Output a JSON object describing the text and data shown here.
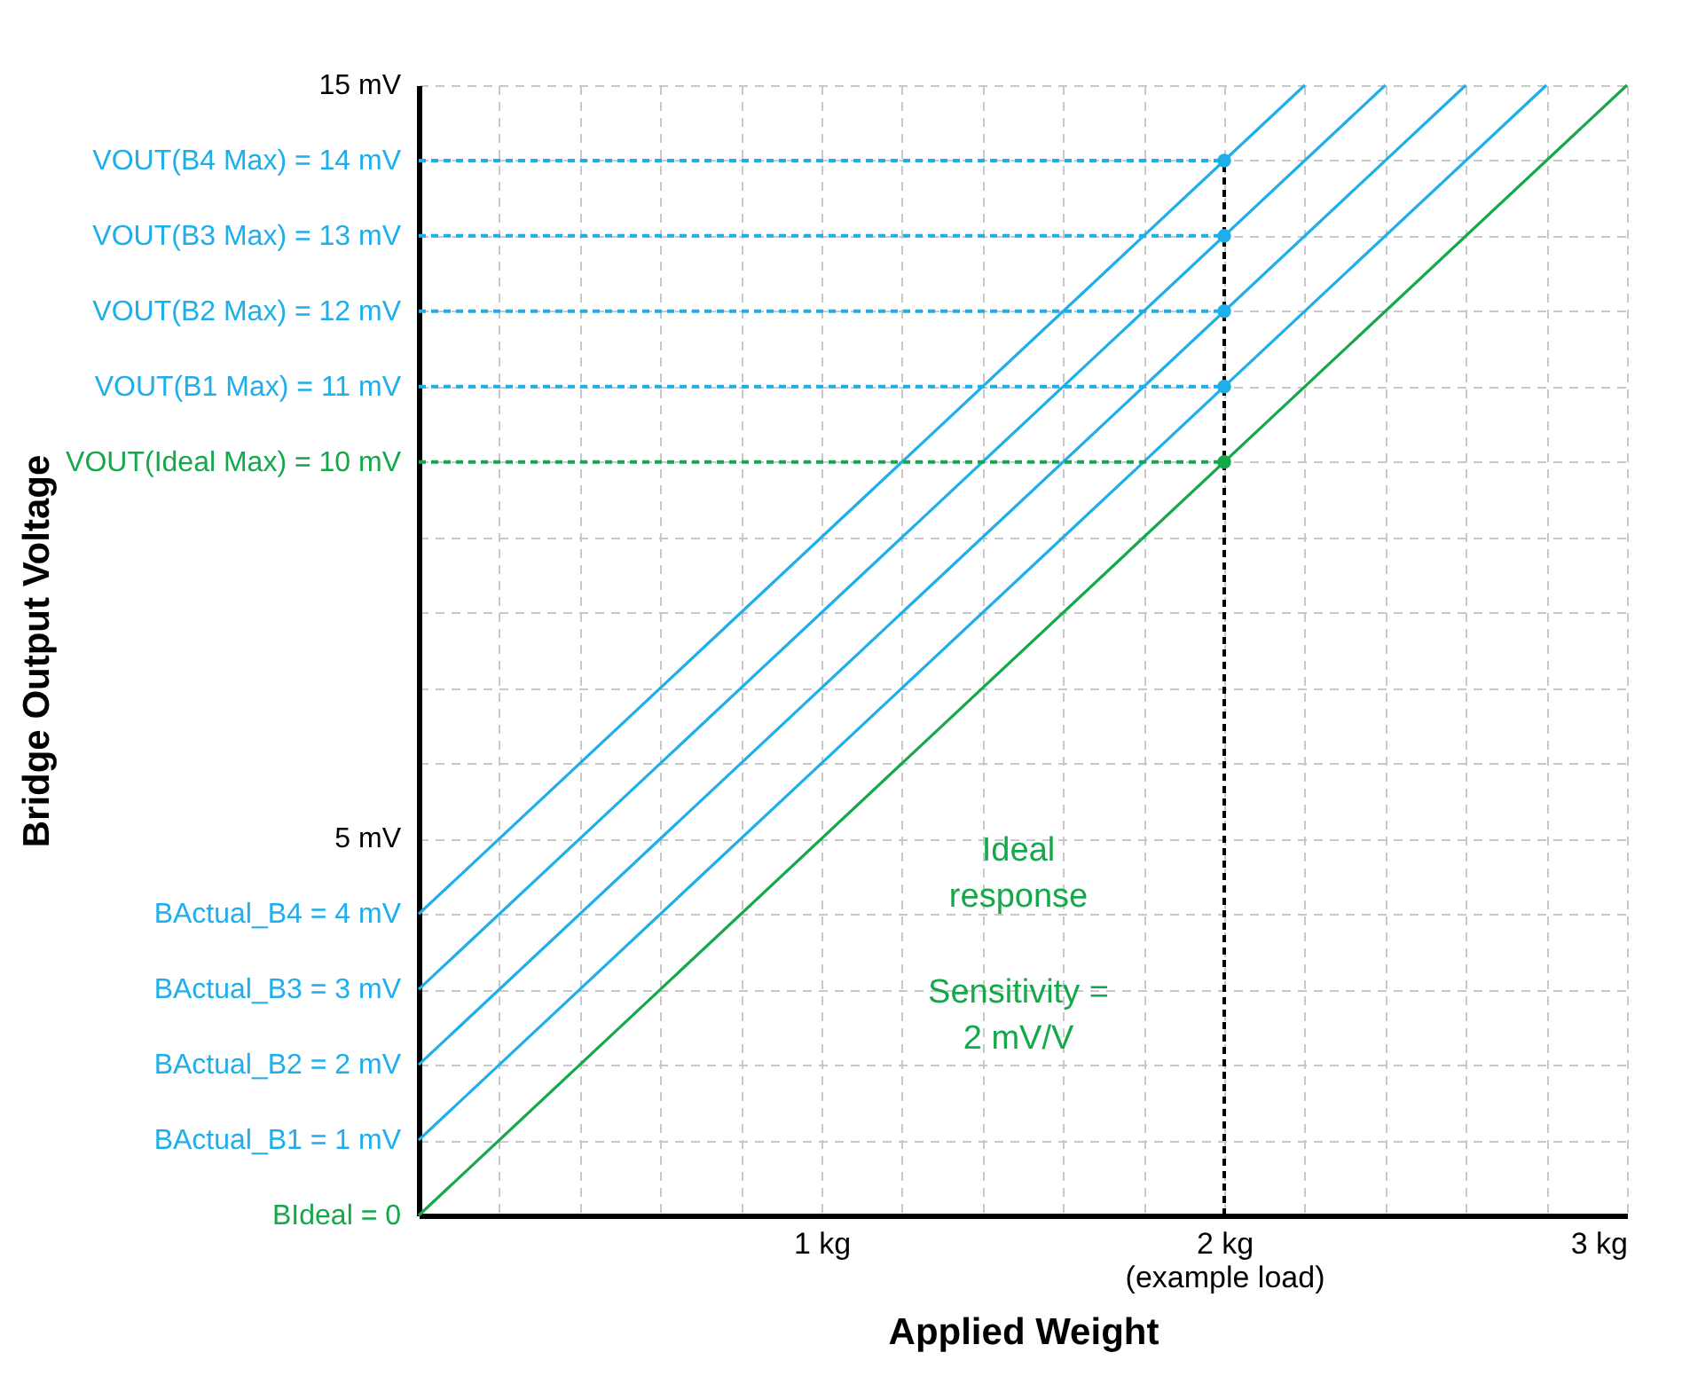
{
  "chart_data": {
    "type": "line",
    "xlabel": "Applied Weight",
    "ylabel": "Bridge Output Voltage",
    "xlim": [
      0,
      3
    ],
    "ylim": [
      0,
      15
    ],
    "grid": true,
    "xticks": [
      {
        "value": 0,
        "label": null
      },
      {
        "value": 0.2,
        "label": null
      },
      {
        "value": 0.4,
        "label": null
      },
      {
        "value": 0.6,
        "label": null
      },
      {
        "value": 0.8,
        "label": null
      },
      {
        "value": 1,
        "label": "1 kg"
      },
      {
        "value": 1.2,
        "label": null
      },
      {
        "value": 1.4,
        "label": null
      },
      {
        "value": 1.6,
        "label": null
      },
      {
        "value": 1.8,
        "label": null
      },
      {
        "value": 2,
        "label": "2 kg\n(example load)"
      },
      {
        "value": 2.2,
        "label": null
      },
      {
        "value": 2.4,
        "label": null
      },
      {
        "value": 2.6,
        "label": null
      },
      {
        "value": 2.8,
        "label": null
      },
      {
        "value": 3,
        "label": "3 kg"
      }
    ],
    "yticks": [
      {
        "value": 0,
        "label": "BIdeal = 0"
      },
      {
        "value": 1,
        "label": "BActual_B1 = 1 mV"
      },
      {
        "value": 2,
        "label": "BActual_B2 = 2 mV"
      },
      {
        "value": 3,
        "label": "BActual_B3 = 3 mV"
      },
      {
        "value": 4,
        "label": "BActual_B4 = 4 mV"
      },
      {
        "value": 5,
        "label": "5 mV"
      },
      {
        "value": 6,
        "label": null
      },
      {
        "value": 7,
        "label": null
      },
      {
        "value": 8,
        "label": null
      },
      {
        "value": 9,
        "label": null
      },
      {
        "value": 10,
        "label": "VOUT(Ideal Max) = 10 mV"
      },
      {
        "value": 11,
        "label": "VOUT(B1 Max) = 11 mV"
      },
      {
        "value": 12,
        "label": "VOUT(B2 Max) = 12 mV"
      },
      {
        "value": 13,
        "label": "VOUT(B3 Max) = 13 mV"
      },
      {
        "value": 14,
        "label": "VOUT(B4 Max) = 14 mV"
      },
      {
        "value": 15,
        "label": "15 mV"
      }
    ],
    "annotations": [
      "Ideal response",
      "Sensitivity = 2 mV/V"
    ],
    "series": [
      {
        "type": "line",
        "color": "#14a84b",
        "line_style": "solid",
        "x": [
          0,
          3
        ],
        "values": [
          0,
          15
        ]
      },
      {
        "type": "line",
        "color": "#1eaeea",
        "line_style": "solid",
        "x": [
          0,
          2.8
        ],
        "values": [
          1,
          15
        ]
      },
      {
        "type": "line",
        "color": "#1eaeea",
        "line_style": "solid",
        "x": [
          0,
          2.6
        ],
        "values": [
          2,
          15
        ]
      },
      {
        "type": "line",
        "color": "#1eaeea",
        "line_style": "solid",
        "x": [
          0,
          2.4
        ],
        "values": [
          3,
          15
        ]
      },
      {
        "type": "line",
        "color": "#1eaeea",
        "line_style": "solid",
        "x": [
          0,
          2.2
        ],
        "values": [
          4,
          15
        ]
      },
      {
        "type": "line",
        "color": "#14a84b",
        "line_style": "dashed",
        "x": [
          0,
          2
        ],
        "values": [
          10,
          10
        ]
      },
      {
        "type": "line",
        "color": "#1eaeea",
        "line_style": "dashed",
        "x": [
          0,
          2
        ],
        "values": [
          11,
          11
        ]
      },
      {
        "type": "line",
        "color": "#1eaeea",
        "line_style": "dashed",
        "x": [
          0,
          2
        ],
        "values": [
          12,
          12
        ]
      },
      {
        "type": "line",
        "color": "#1eaeea",
        "line_style": "dashed",
        "x": [
          0,
          2
        ],
        "values": [
          13,
          13
        ]
      },
      {
        "type": "line",
        "color": "#1eaeea",
        "line_style": "dashed",
        "x": [
          0,
          2
        ],
        "values": [
          14,
          14
        ]
      },
      {
        "type": "line",
        "color": "#000000",
        "line_style": "dashed",
        "x": [
          2,
          2
        ],
        "values": [
          0,
          14
        ]
      },
      {
        "type": "scatter",
        "marker": "circle",
        "x": [
          2,
          2,
          2,
          2,
          2
        ],
        "values": [
          10,
          11,
          12,
          13,
          14
        ],
        "colors": [
          "#14a84b",
          "#1eaeea",
          "#1eaeea",
          "#1eaeea",
          "#1eaeea"
        ]
      }
    ]
  }
}
